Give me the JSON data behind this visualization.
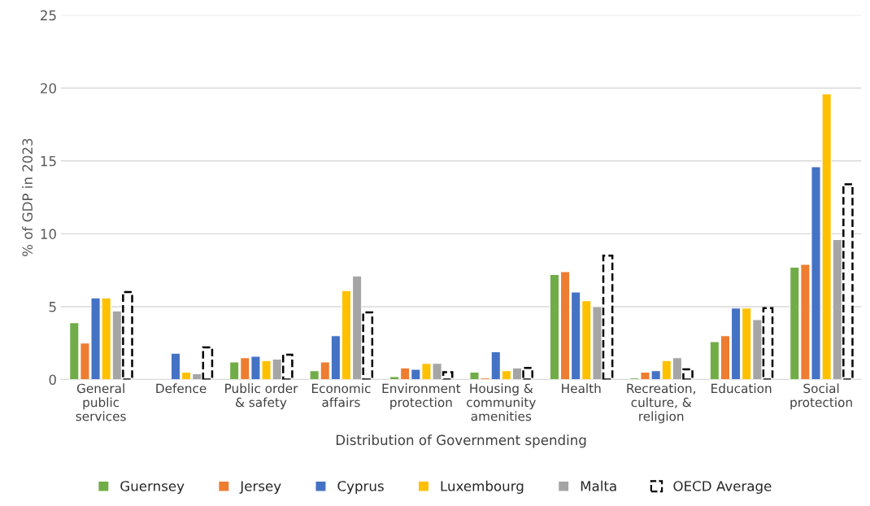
{
  "chart_data": {
    "type": "bar",
    "xlabel": "Distribution of Government spending",
    "ylabel": "% of GDP in 2023",
    "categories": [
      "General\npublic\nservices",
      "Defence",
      "Public order\n& safety",
      "Economic\naffairs",
      "Environment\nprotection",
      "Housing &\ncommunity\namenities",
      "Health",
      "Recreation,\nculture, &\nreligion",
      "Education",
      "Social\nprotection"
    ],
    "series": [
      {
        "name": "Guernsey",
        "color": "#70ad47",
        "values": [
          3.9,
          null,
          1.2,
          0.6,
          0.2,
          0.5,
          7.2,
          0.1,
          2.6,
          7.7
        ]
      },
      {
        "name": "Jersey",
        "color": "#ed7d31",
        "values": [
          2.5,
          null,
          1.5,
          1.2,
          0.8,
          0.1,
          7.4,
          0.5,
          3.0,
          7.9
        ]
      },
      {
        "name": "Cyprus",
        "color": "#4472c4",
        "values": [
          5.6,
          1.8,
          1.6,
          3.0,
          0.7,
          1.9,
          6.0,
          0.6,
          4.9,
          14.6
        ]
      },
      {
        "name": "Luxembourg",
        "color": "#ffc000",
        "values": [
          5.6,
          0.5,
          1.3,
          6.1,
          1.1,
          0.6,
          5.4,
          1.3,
          4.9,
          19.6
        ]
      },
      {
        "name": "Malta",
        "color": "#a5a5a5",
        "values": [
          4.7,
          0.4,
          1.4,
          7.1,
          1.1,
          0.8,
          5.0,
          1.5,
          4.1,
          9.6
        ]
      },
      {
        "name": "OECD Average",
        "color": "#000000",
        "line_style": "dashed",
        "values": [
          6.0,
          2.2,
          1.7,
          4.6,
          0.5,
          0.8,
          8.5,
          0.7,
          4.9,
          13.4
        ]
      }
    ],
    "ylim": [
      0,
      25
    ],
    "yticks": [
      0,
      5,
      10,
      15,
      20,
      25
    ],
    "grid": "y",
    "legend": "bottom"
  }
}
